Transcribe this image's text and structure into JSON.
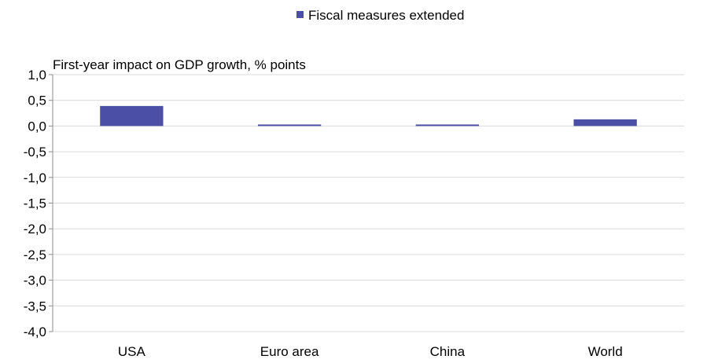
{
  "chart_data": {
    "type": "bar",
    "title": "",
    "ylabel": "First-year impact on GDP growth, % points",
    "xlabel": "",
    "categories": [
      "USA",
      "Euro area",
      "China",
      "World"
    ],
    "series": [
      {
        "name": "Fiscal measures extended",
        "color": "#4b4fa6",
        "values": [
          0.39,
          0.03,
          0.03,
          0.13
        ]
      }
    ],
    "ylim": [
      -4.0,
      1.0
    ],
    "yticks": [
      1.0,
      0.5,
      0.0,
      -0.5,
      -1.0,
      -1.5,
      -2.0,
      -2.5,
      -3.0,
      -3.5,
      -4.0
    ],
    "ytick_labels": [
      "1,0",
      "0,5",
      "0,0",
      "-0,5",
      "-1,0",
      "-1,5",
      "-2,0",
      "-2,5",
      "-3,0",
      "-3,5",
      "-4,0"
    ],
    "grid": true,
    "legend_position": "top-center"
  }
}
